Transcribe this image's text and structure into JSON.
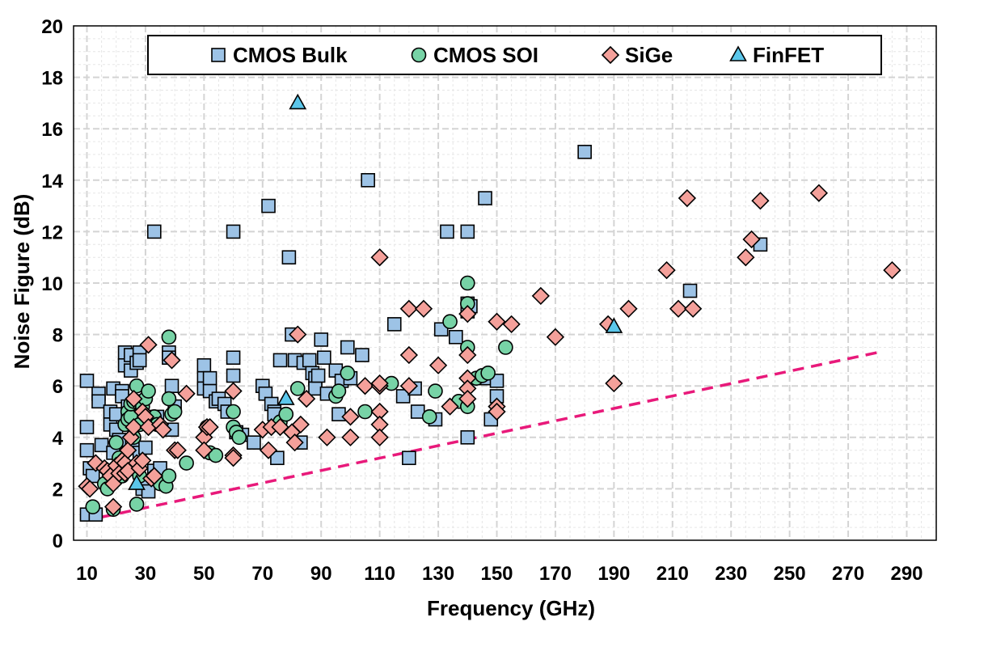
{
  "chart_data": {
    "type": "scatter",
    "title": "",
    "xlabel": "Frequency (GHz)",
    "ylabel": "Noise Figure (dB)",
    "xlim": [
      5,
      300
    ],
    "ylim": [
      0,
      20
    ],
    "x_ticks": [
      10,
      30,
      50,
      70,
      90,
      110,
      130,
      150,
      170,
      190,
      210,
      230,
      250,
      270,
      290
    ],
    "y_ticks": [
      0,
      2,
      4,
      6,
      8,
      10,
      12,
      14,
      16,
      18,
      20
    ],
    "grid": true,
    "legend_position": "top",
    "series": [
      {
        "name": "CMOS Bulk",
        "marker": "square",
        "color": "#9DC3E6",
        "points": [
          [
            10,
            6.2
          ],
          [
            10,
            4.4
          ],
          [
            10,
            3.5
          ],
          [
            10,
            1.0
          ],
          [
            11,
            2.8
          ],
          [
            12,
            2.5
          ],
          [
            13,
            1.0
          ],
          [
            14,
            5.7
          ],
          [
            14,
            5.4
          ],
          [
            15,
            3.7
          ],
          [
            18,
            5.0
          ],
          [
            18,
            4.5
          ],
          [
            19,
            5.9
          ],
          [
            19,
            3.4
          ],
          [
            20,
            4.3
          ],
          [
            20,
            4.9
          ],
          [
            21,
            3.9
          ],
          [
            22,
            5.8
          ],
          [
            22,
            5.6
          ],
          [
            23,
            7.3
          ],
          [
            23,
            6.8
          ],
          [
            24,
            5.2
          ],
          [
            24,
            4.9
          ],
          [
            25,
            7.2
          ],
          [
            25,
            6.6
          ],
          [
            25,
            4.7
          ],
          [
            26,
            3.8
          ],
          [
            27,
            6.9
          ],
          [
            27,
            5.4
          ],
          [
            28,
            7.3
          ],
          [
            28,
            7.0
          ],
          [
            28,
            3.4
          ],
          [
            29,
            2.0
          ],
          [
            30,
            3.6
          ],
          [
            30,
            2.3
          ],
          [
            31,
            1.9
          ],
          [
            33,
            12.0
          ],
          [
            33,
            2.7
          ],
          [
            34,
            4.8
          ],
          [
            35,
            2.8
          ],
          [
            38,
            7.3
          ],
          [
            38,
            7.1
          ],
          [
            39,
            6.0
          ],
          [
            40,
            5.2
          ],
          [
            39,
            4.3
          ],
          [
            50,
            6.8
          ],
          [
            50,
            6.3
          ],
          [
            50,
            5.9
          ],
          [
            52,
            6.3
          ],
          [
            52,
            5.8
          ],
          [
            54,
            5.4
          ],
          [
            55,
            5.5
          ],
          [
            57,
            5.3
          ],
          [
            58,
            5.0
          ],
          [
            60,
            12.0
          ],
          [
            60,
            7.1
          ],
          [
            60,
            6.4
          ],
          [
            61,
            4.2
          ],
          [
            63,
            4.1
          ],
          [
            67,
            3.8
          ],
          [
            70,
            6.0
          ],
          [
            71,
            5.7
          ],
          [
            72,
            13.0
          ],
          [
            73,
            5.3
          ],
          [
            74,
            5.0
          ],
          [
            74,
            4.9
          ],
          [
            75,
            3.2
          ],
          [
            76,
            7.0
          ],
          [
            79,
            11.0
          ],
          [
            80,
            8.0
          ],
          [
            81,
            7.0
          ],
          [
            83,
            3.8
          ],
          [
            84,
            6.9
          ],
          [
            86,
            7.0
          ],
          [
            87,
            6.5
          ],
          [
            88,
            6.3
          ],
          [
            88,
            5.9
          ],
          [
            89,
            6.4
          ],
          [
            90,
            7.8
          ],
          [
            91,
            7.1
          ],
          [
            92,
            5.7
          ],
          [
            95,
            6.6
          ],
          [
            96,
            4.9
          ],
          [
            97,
            6.2
          ],
          [
            99,
            7.5
          ],
          [
            100,
            6.3
          ],
          [
            104,
            7.2
          ],
          [
            106,
            14.0
          ],
          [
            115,
            8.4
          ],
          [
            118,
            5.6
          ],
          [
            120,
            3.2
          ],
          [
            122,
            5.9
          ],
          [
            123,
            5.0
          ],
          [
            129,
            4.7
          ],
          [
            131,
            8.2
          ],
          [
            133,
            12.0
          ],
          [
            136,
            7.9
          ],
          [
            140,
            12.0
          ],
          [
            140,
            9.2
          ],
          [
            140,
            8.9
          ],
          [
            141,
            9.1
          ],
          [
            140,
            4.0
          ],
          [
            146,
            6.3
          ],
          [
            146,
            13.3
          ],
          [
            148,
            4.7
          ],
          [
            150,
            5.6
          ],
          [
            150,
            6.2
          ],
          [
            180,
            15.1
          ],
          [
            216,
            9.7
          ],
          [
            240,
            11.5
          ]
        ]
      },
      {
        "name": "CMOS SOI",
        "marker": "circle",
        "color": "#77D3A6",
        "points": [
          [
            12,
            1.3
          ],
          [
            16,
            2.2
          ],
          [
            17,
            2.0
          ],
          [
            19,
            1.2
          ],
          [
            20,
            3.8
          ],
          [
            21,
            3.2
          ],
          [
            22,
            2.5
          ],
          [
            23,
            4.5
          ],
          [
            24,
            5.0
          ],
          [
            24,
            4.7
          ],
          [
            25,
            4.8
          ],
          [
            25,
            5.3
          ],
          [
            26,
            4.0
          ],
          [
            26,
            5.4
          ],
          [
            27,
            1.4
          ],
          [
            27,
            6.0
          ],
          [
            28,
            4.5
          ],
          [
            28,
            2.5
          ],
          [
            29,
            5.2
          ],
          [
            30,
            5.5
          ],
          [
            31,
            5.8
          ],
          [
            33,
            4.8
          ],
          [
            34,
            4.5
          ],
          [
            35,
            2.2
          ],
          [
            37,
            2.1
          ],
          [
            38,
            7.9
          ],
          [
            38,
            5.5
          ],
          [
            38,
            2.5
          ],
          [
            39,
            4.9
          ],
          [
            40,
            5.0
          ],
          [
            44,
            3.0
          ],
          [
            51,
            4.4
          ],
          [
            52,
            3.4
          ],
          [
            54,
            3.3
          ],
          [
            60,
            5.0
          ],
          [
            60,
            4.4
          ],
          [
            61,
            4.2
          ],
          [
            62,
            4.0
          ],
          [
            76,
            4.6
          ],
          [
            78,
            4.9
          ],
          [
            82,
            5.9
          ],
          [
            95,
            5.6
          ],
          [
            96,
            5.8
          ],
          [
            99,
            6.5
          ],
          [
            105,
            5.0
          ],
          [
            114,
            6.1
          ],
          [
            127,
            4.8
          ],
          [
            129,
            5.8
          ],
          [
            134,
            8.5
          ],
          [
            137,
            5.4
          ],
          [
            140,
            10.0
          ],
          [
            140,
            9.2
          ],
          [
            140,
            7.5
          ],
          [
            140,
            5.2
          ],
          [
            143,
            6.3
          ],
          [
            145,
            6.4
          ],
          [
            147,
            6.5
          ],
          [
            153,
            7.5
          ]
        ]
      },
      {
        "name": "SiGe",
        "marker": "diamond",
        "color": "#F4A09A",
        "points": [
          [
            10,
            2.1
          ],
          [
            11,
            2.0
          ],
          [
            13,
            3.0
          ],
          [
            16,
            2.8
          ],
          [
            17,
            2.7
          ],
          [
            18,
            2.5
          ],
          [
            19,
            2.2
          ],
          [
            19,
            1.3
          ],
          [
            20,
            2.9
          ],
          [
            21,
            2.6
          ],
          [
            22,
            3.1
          ],
          [
            23,
            3.0
          ],
          [
            23,
            2.6
          ],
          [
            24,
            3.5
          ],
          [
            24,
            2.7
          ],
          [
            25,
            4.0
          ],
          [
            26,
            4.4
          ],
          [
            26,
            5.5
          ],
          [
            27,
            3.0
          ],
          [
            28,
            2.8
          ],
          [
            29,
            5.0
          ],
          [
            29,
            3.1
          ],
          [
            30,
            4.8
          ],
          [
            31,
            4.4
          ],
          [
            31,
            7.6
          ],
          [
            32,
            2.4
          ],
          [
            33,
            2.5
          ],
          [
            35,
            4.5
          ],
          [
            36,
            4.3
          ],
          [
            39,
            7.0
          ],
          [
            40,
            3.5
          ],
          [
            41,
            3.5
          ],
          [
            44,
            5.7
          ],
          [
            50,
            4.0
          ],
          [
            50,
            3.5
          ],
          [
            51,
            4.4
          ],
          [
            52,
            4.4
          ],
          [
            60,
            5.8
          ],
          [
            60,
            3.3
          ],
          [
            60,
            3.2
          ],
          [
            70,
            4.3
          ],
          [
            72,
            3.5
          ],
          [
            73,
            4.4
          ],
          [
            76,
            4.4
          ],
          [
            80,
            4.2
          ],
          [
            81,
            3.8
          ],
          [
            82,
            8.0
          ],
          [
            83,
            4.5
          ],
          [
            85,
            5.5
          ],
          [
            92,
            4.0
          ],
          [
            100,
            4.8
          ],
          [
            100,
            4.0
          ],
          [
            105,
            6.0
          ],
          [
            110,
            11.0
          ],
          [
            110,
            6.0
          ],
          [
            110,
            6.1
          ],
          [
            110,
            5.0
          ],
          [
            110,
            4.5
          ],
          [
            110,
            4.0
          ],
          [
            120,
            9.0
          ],
          [
            120,
            7.2
          ],
          [
            120,
            6.0
          ],
          [
            125,
            9.0
          ],
          [
            130,
            6.8
          ],
          [
            134,
            5.2
          ],
          [
            140,
            8.8
          ],
          [
            140,
            7.2
          ],
          [
            140,
            6.3
          ],
          [
            140,
            5.9
          ],
          [
            140,
            5.5
          ],
          [
            150,
            8.5
          ],
          [
            150,
            5.2
          ],
          [
            150,
            5.0
          ],
          [
            155,
            8.4
          ],
          [
            165,
            9.5
          ],
          [
            170,
            7.9
          ],
          [
            188,
            8.4
          ],
          [
            190,
            6.1
          ],
          [
            195,
            9.0
          ],
          [
            208,
            10.5
          ],
          [
            212,
            9.0
          ],
          [
            215,
            13.3
          ],
          [
            217,
            9.0
          ],
          [
            235,
            11.0
          ],
          [
            237,
            11.7
          ],
          [
            240,
            13.2
          ],
          [
            260,
            13.5
          ],
          [
            285,
            10.5
          ]
        ]
      },
      {
        "name": "FinFET",
        "marker": "triangle",
        "color": "#5BC7EB",
        "points": [
          [
            27,
            2.2
          ],
          [
            78,
            5.5
          ],
          [
            82,
            17.0
          ],
          [
            190,
            8.3
          ]
        ]
      }
    ],
    "trend_line": {
      "style": "dashed",
      "color": "#E8197A",
      "points": [
        [
          15,
          0.9
        ],
        [
          280,
          7.3
        ]
      ]
    }
  }
}
